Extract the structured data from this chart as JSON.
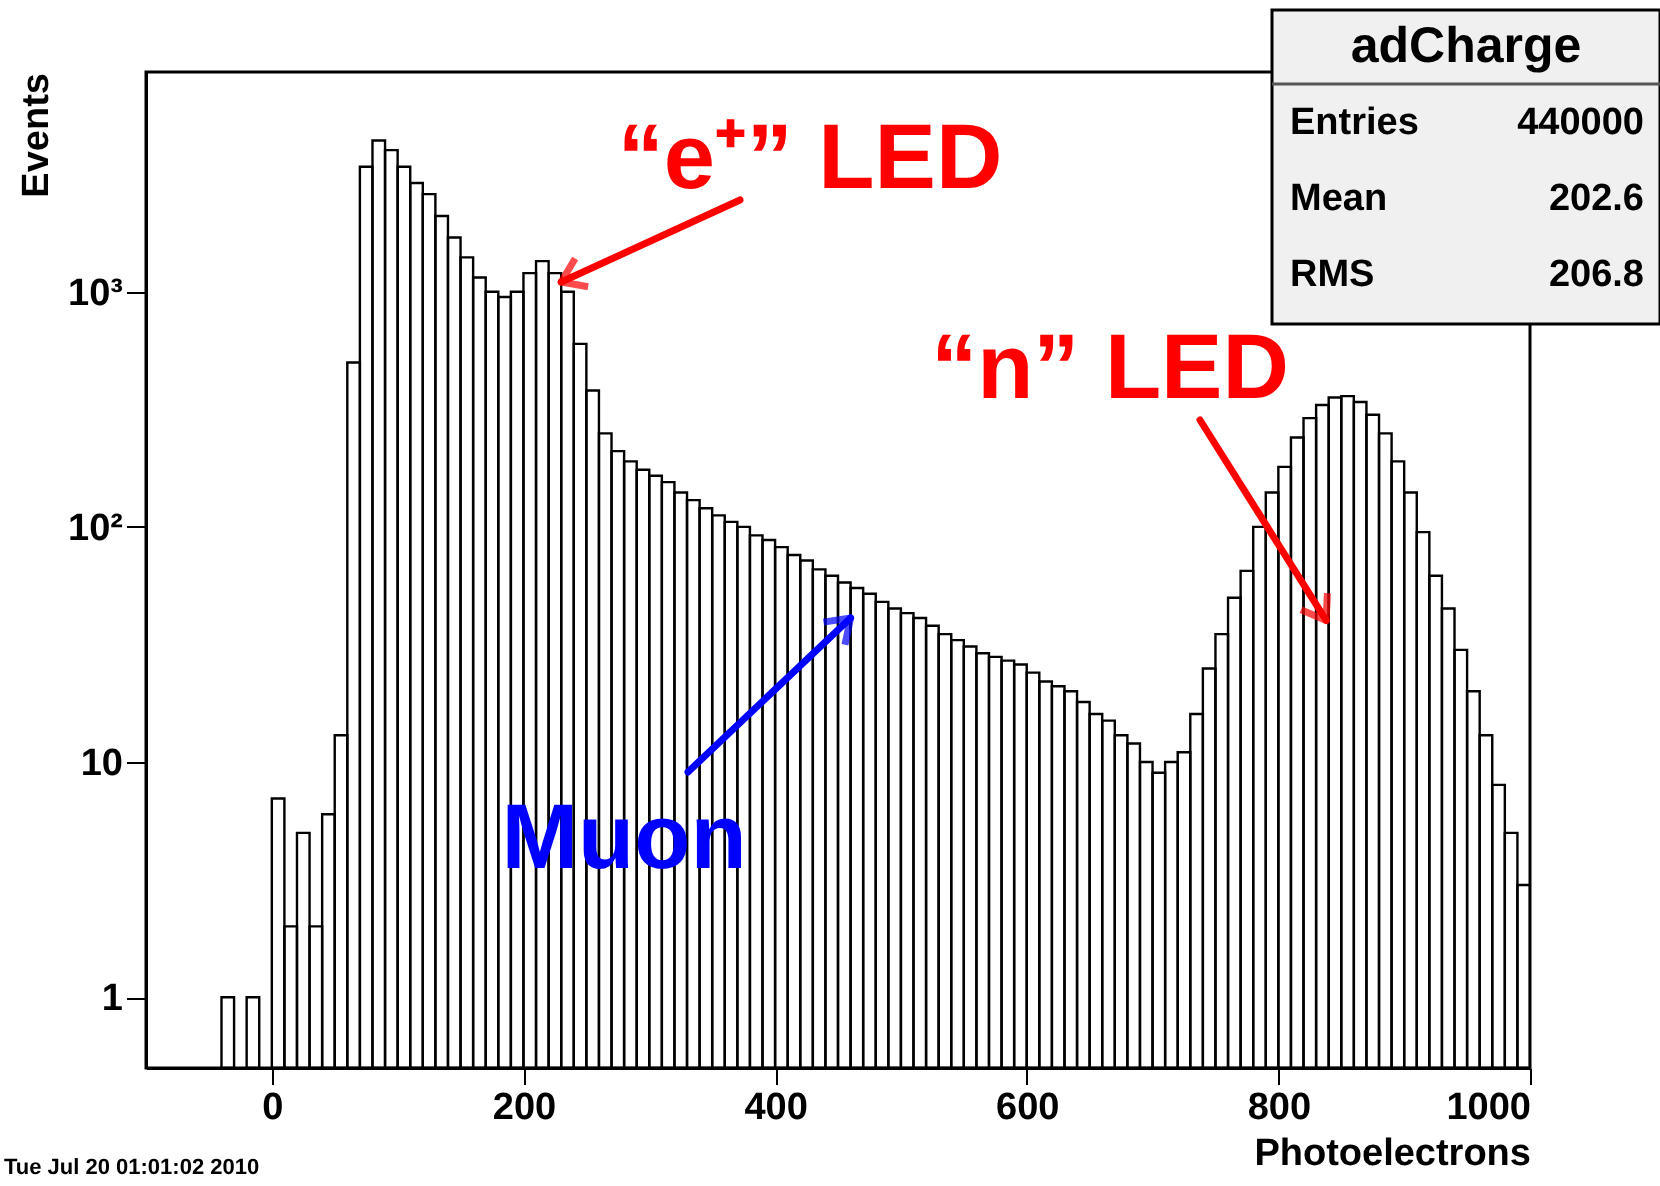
{
  "chart_data": {
    "type": "histogram",
    "xlabel": "Photoelectrons",
    "ylabel": "Events",
    "color": "#000000",
    "log": "y",
    "grid": false,
    "xlim": [
      -100,
      1000
    ],
    "xticks": [
      0,
      200,
      400,
      600,
      800,
      1000
    ],
    "ylim": [
      0.5,
      8600
    ],
    "yticks": [
      1,
      10,
      {
        "value": 100,
        "label": "10²"
      },
      {
        "value": 1000,
        "label": "10³"
      }
    ],
    "bins": [
      -40,
      -30,
      -20,
      -10,
      0,
      10,
      20,
      30,
      40,
      50,
      60,
      70,
      80,
      90,
      100,
      110,
      120,
      130,
      140,
      150,
      160,
      170,
      180,
      190,
      200,
      210,
      220,
      230,
      240,
      250,
      260,
      270,
      280,
      290,
      300,
      310,
      320,
      330,
      340,
      350,
      360,
      370,
      380,
      390,
      400,
      410,
      420,
      430,
      440,
      450,
      460,
      470,
      480,
      490,
      500,
      510,
      520,
      530,
      540,
      550,
      560,
      570,
      580,
      590,
      600,
      610,
      620,
      630,
      640,
      650,
      660,
      670,
      680,
      690,
      700,
      710,
      720,
      730,
      740,
      750,
      760,
      770,
      780,
      790,
      800,
      810,
      820,
      830,
      840,
      850,
      860,
      870,
      880,
      890,
      900,
      910,
      920,
      930,
      940,
      950,
      960,
      970,
      980,
      990,
      1000
    ],
    "values": [
      1,
      null,
      1,
      null,
      7,
      2,
      5,
      2,
      6,
      13,
      500,
      3400,
      4400,
      4000,
      3400,
      2900,
      2600,
      2100,
      1700,
      1400,
      1150,
      1000,
      950,
      1000,
      1200,
      1350,
      1200,
      1000,
      600,
      380,
      250,
      210,
      190,
      175,
      165,
      155,
      140,
      130,
      120,
      112,
      105,
      100,
      92,
      88,
      82,
      76,
      72,
      66,
      62,
      58,
      55,
      52,
      48,
      45,
      43,
      41,
      38,
      35,
      33,
      31,
      29,
      28,
      27,
      26,
      24,
      22,
      21,
      20,
      18,
      16,
      15,
      13,
      12,
      10,
      9,
      10,
      11,
      16,
      25,
      35,
      50,
      65,
      100,
      140,
      180,
      240,
      290,
      330,
      355,
      360,
      340,
      300,
      250,
      190,
      140,
      95,
      62,
      45,
      30,
      20,
      13,
      8,
      5,
      3
    ],
    "annotations": [
      {
        "text": "“e⁺” LED",
        "x": 230,
        "y": 1100
      },
      {
        "text": "“n” LED",
        "x": 838,
        "y": 40
      },
      {
        "text": "Muon",
        "x": 460,
        "y": 41
      },
      "adCharge",
      "Entries",
      "440000",
      "Mean",
      "202.6",
      "RMS",
      "206.8",
      "Tue Jul 20 01:01:02 2010"
    ]
  }
}
